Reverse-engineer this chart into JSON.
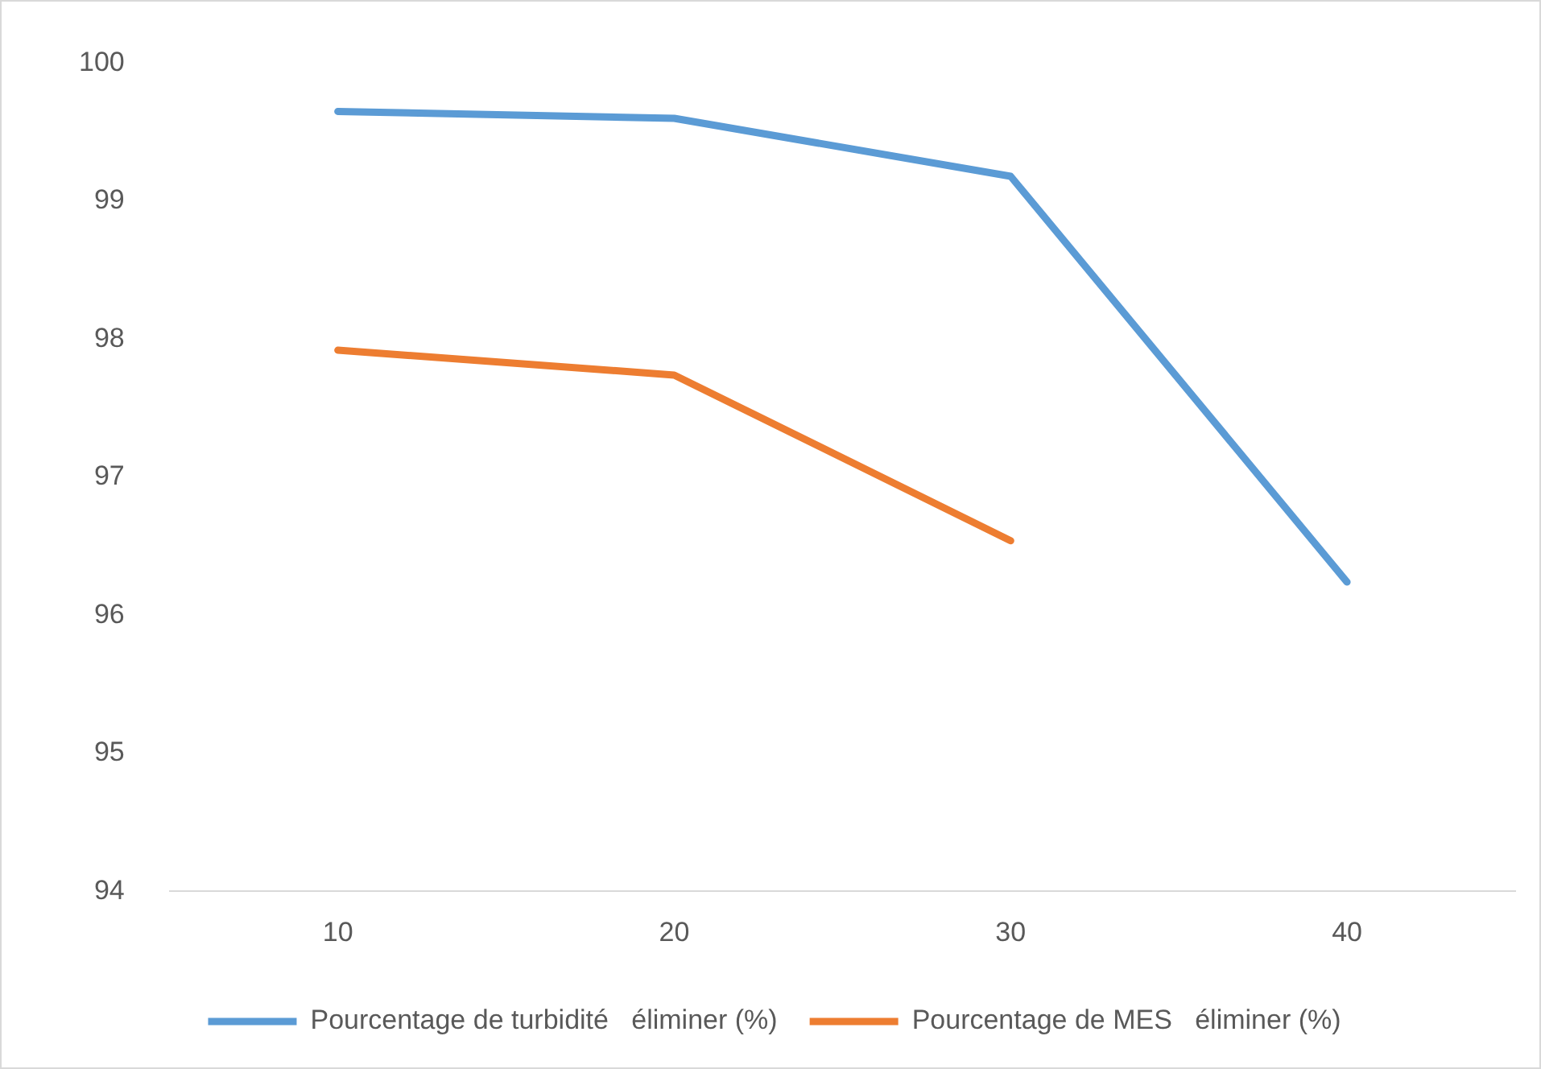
{
  "chart_data": {
    "type": "line",
    "categories": [
      "10",
      "20",
      "30",
      "40"
    ],
    "series": [
      {
        "name": "Pourcentage de turbidité   éliminer (%)",
        "color": "#5b9bd5",
        "values": [
          99.65,
          99.6,
          99.18,
          96.24
        ]
      },
      {
        "name": "Pourcentage de MES   éliminer (%)",
        "color": "#ed7d31",
        "values": [
          97.92,
          97.74,
          96.54,
          null
        ]
      }
    ],
    "ylim": [
      94,
      100
    ],
    "yticks": [
      94,
      95,
      96,
      97,
      98,
      99,
      100
    ],
    "grid": false,
    "legend": "bottom",
    "marker": "none",
    "line_style": "solid"
  }
}
